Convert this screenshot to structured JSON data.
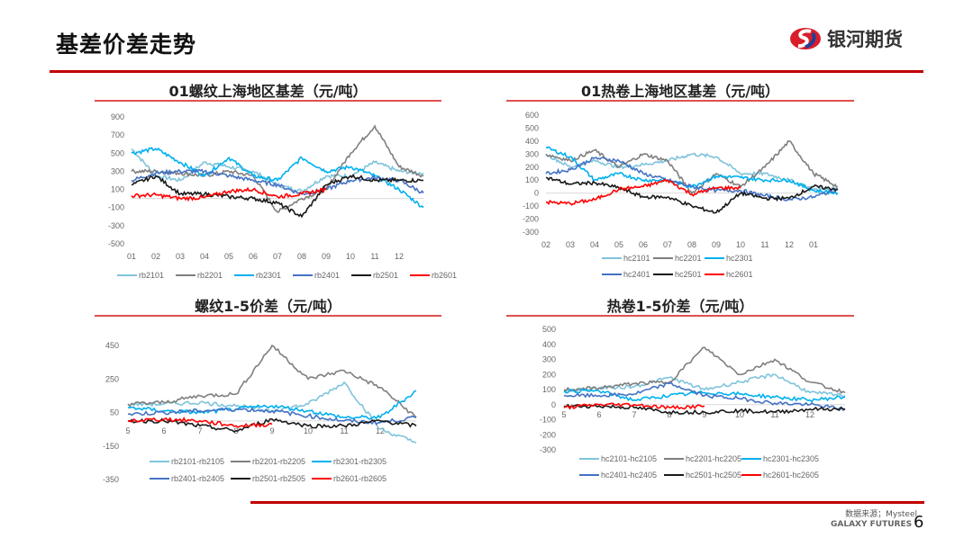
{
  "header": {
    "title": "基差价差走势",
    "brand": "银河期货"
  },
  "footer": {
    "source": "数据来源；Mysteel",
    "brand": "GALAXY FUTURES",
    "page": "6"
  },
  "colors": {
    "accent": "#c00000"
  },
  "chart_data": [
    {
      "type": "line",
      "title": "01螺纹上海地区基差（元/吨）",
      "categories": [
        "01",
        "02",
        "03",
        "04",
        "05",
        "06",
        "07",
        "08",
        "09",
        "10",
        "11",
        "12",
        ""
      ],
      "ylim": [
        -500,
        900
      ],
      "yticks": [
        900,
        700,
        500,
        300,
        100,
        -100,
        -300,
        -500
      ],
      "grid": false,
      "legend": "bottom",
      "series": [
        {
          "name": "rb2101",
          "color": "#7fc4dc",
          "values": [
            550,
            250,
            200,
            400,
            350,
            300,
            150,
            80,
            250,
            250,
            400,
            300,
            280
          ]
        },
        {
          "name": "rb2201",
          "color": "#7f7f7f",
          "values": [
            300,
            300,
            280,
            250,
            300,
            250,
            -150,
            0,
            100,
            500,
            800,
            350,
            250
          ]
        },
        {
          "name": "rb2301",
          "color": "#00b0f0",
          "values": [
            500,
            550,
            400,
            250,
            450,
            250,
            200,
            450,
            300,
            350,
            250,
            100,
            -100
          ]
        },
        {
          "name": "rb2401",
          "color": "#4472c4",
          "values": [
            200,
            280,
            300,
            300,
            250,
            200,
            150,
            50,
            100,
            200,
            230,
            200,
            60
          ]
        },
        {
          "name": "rb2501",
          "color": "#1a1a1a",
          "values": [
            150,
            250,
            50,
            50,
            20,
            0,
            -50,
            -200,
            150,
            250,
            200,
            200,
            200
          ]
        },
        {
          "name": "rb2601",
          "color": "#ff0000",
          "values": [
            30,
            40,
            0,
            10,
            80,
            100,
            20,
            50,
            100,
            null,
            null,
            null,
            null
          ]
        }
      ]
    },
    {
      "type": "line",
      "title": "01热卷上海地区基差（元/吨）",
      "categories": [
        "02",
        "03",
        "04",
        "05",
        "06",
        "07",
        "08",
        "09",
        "10",
        "11",
        "12",
        "01",
        ""
      ],
      "ylim": [
        -300,
        600
      ],
      "yticks": [
        600,
        500,
        400,
        300,
        200,
        100,
        0,
        -100,
        -200,
        -300
      ],
      "grid": false,
      "legend": "bottom",
      "series": [
        {
          "name": "hc2101",
          "color": "#7fc4dc",
          "values": [
            300,
            200,
            250,
            200,
            220,
            250,
            300,
            280,
            150,
            150,
            100,
            30,
            30
          ]
        },
        {
          "name": "hc2201",
          "color": "#7f7f7f",
          "values": [
            300,
            250,
            330,
            200,
            300,
            250,
            0,
            150,
            50,
            200,
            400,
            150,
            50
          ]
        },
        {
          "name": "hc2301",
          "color": "#00b0f0",
          "values": [
            350,
            280,
            100,
            150,
            100,
            100,
            50,
            130,
            120,
            100,
            100,
            20,
            0
          ]
        },
        {
          "name": "hc2401",
          "color": "#4472c4",
          "values": [
            150,
            180,
            270,
            250,
            150,
            100,
            50,
            20,
            20,
            -20,
            -50,
            -30,
            30
          ]
        },
        {
          "name": "hc2501",
          "color": "#1a1a1a",
          "values": [
            120,
            70,
            80,
            40,
            -30,
            -30,
            -100,
            -150,
            0,
            -40,
            -40,
            50,
            30
          ]
        },
        {
          "name": "hc2601",
          "color": "#ff0000",
          "values": [
            -70,
            -80,
            -50,
            30,
            50,
            100,
            -10,
            40,
            40,
            null,
            null,
            null,
            null
          ]
        }
      ]
    },
    {
      "type": "line",
      "title": "螺纹1-5价差（元/吨）",
      "categories": [
        "5",
        "6",
        "7",
        "8",
        "9",
        "10",
        "11",
        "12",
        ""
      ],
      "ylim": [
        -350,
        450
      ],
      "yticks": [
        450,
        250,
        50,
        -150,
        -350
      ],
      "grid": false,
      "legend": "bottom",
      "series": [
        {
          "name": "rb2101-rb2105",
          "color": "#7fc4dc",
          "values": [
            100,
            100,
            110,
            90,
            60,
            100,
            230,
            -50,
            -130
          ]
        },
        {
          "name": "rb2201-rb2205",
          "color": "#7f7f7f",
          "values": [
            100,
            110,
            150,
            160,
            450,
            250,
            300,
            200,
            20
          ]
        },
        {
          "name": "rb2301-rb2305",
          "color": "#00b0f0",
          "values": [
            80,
            60,
            50,
            70,
            90,
            60,
            20,
            20,
            180
          ]
        },
        {
          "name": "rb2401-rb2405",
          "color": "#4472c4",
          "values": [
            40,
            50,
            60,
            70,
            60,
            30,
            0,
            -10,
            20
          ]
        },
        {
          "name": "rb2501-rb2505",
          "color": "#1a1a1a",
          "values": [
            0,
            0,
            -30,
            -60,
            10,
            -30,
            -30,
            0,
            -30
          ]
        },
        {
          "name": "rb2601-rb2605",
          "color": "#ff0000",
          "values": [
            0,
            10,
            0,
            -30,
            -20,
            null,
            null,
            null,
            null
          ]
        }
      ]
    },
    {
      "type": "line",
      "title": "热卷1-5价差（元/吨）",
      "categories": [
        "5",
        "6",
        "7",
        "8",
        "9",
        "10",
        "11",
        "12",
        ""
      ],
      "ylim": [
        -300,
        500
      ],
      "yticks": [
        500,
        400,
        300,
        200,
        100,
        0,
        -100,
        -200,
        -300
      ],
      "grid": false,
      "legend": "bottom",
      "series": [
        {
          "name": "hc2101-hc2105",
          "color": "#7fc4dc",
          "values": [
            90,
            110,
            120,
            180,
            100,
            150,
            200,
            80,
            60
          ]
        },
        {
          "name": "hc2201-hc2205",
          "color": "#7f7f7f",
          "values": [
            100,
            110,
            140,
            150,
            380,
            200,
            300,
            150,
            80
          ]
        },
        {
          "name": "hc2301-hc2305",
          "color": "#00b0f0",
          "values": [
            90,
            90,
            30,
            60,
            80,
            70,
            50,
            30,
            50
          ]
        },
        {
          "name": "hc2401-hc2405",
          "color": "#4472c4",
          "values": [
            60,
            60,
            70,
            140,
            60,
            40,
            10,
            0,
            -30
          ]
        },
        {
          "name": "hc2501-hc2505",
          "color": "#1a1a1a",
          "values": [
            -10,
            -10,
            -20,
            -50,
            -50,
            -40,
            -50,
            -30,
            -30
          ]
        },
        {
          "name": "hc2601-hc2605",
          "color": "#ff0000",
          "values": [
            -20,
            0,
            0,
            -20,
            -10,
            null,
            null,
            null,
            null
          ]
        }
      ]
    }
  ]
}
